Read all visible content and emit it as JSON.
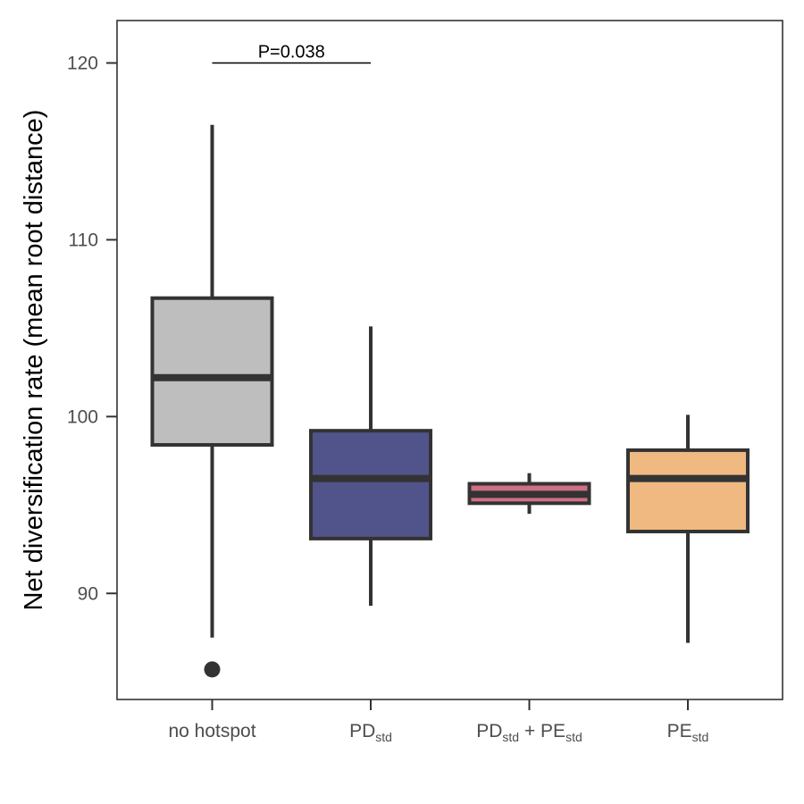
{
  "chart_data": {
    "type": "boxplot",
    "title": "",
    "xlabel": "",
    "ylabel": "Net diversification rate (mean root distance)",
    "ylim": [
      84,
      122.4
    ],
    "yticks": [
      90,
      100,
      110,
      120
    ],
    "grid": false,
    "legend": "none",
    "categories": [
      {
        "base": "no hotspot",
        "sub": ""
      },
      {
        "base": "PD",
        "sub": "std"
      },
      {
        "base": "PD",
        "sub": "std",
        "mid": " + PE",
        "sub2": "std"
      },
      {
        "base": "PE",
        "sub": "std"
      }
    ],
    "boxes": [
      {
        "whisker_low": 87.5,
        "q1": 98.4,
        "median": 102.2,
        "q3": 106.7,
        "whisker_high": 116.5,
        "outliers": [
          85.7
        ],
        "fill": "#bebebe"
      },
      {
        "whisker_low": 89.3,
        "q1": 93.1,
        "median": 96.5,
        "q3": 99.2,
        "whisker_high": 105.1,
        "outliers": [],
        "fill": "#51538b"
      },
      {
        "whisker_low": 94.5,
        "q1": 95.1,
        "median": 95.6,
        "q3": 96.2,
        "whisker_high": 96.8,
        "outliers": [],
        "fill": "#cf6f86"
      },
      {
        "whisker_low": 87.2,
        "q1": 93.5,
        "median": 96.5,
        "q3": 98.1,
        "whisker_high": 100.1,
        "outliers": [],
        "fill": "#f0b981"
      }
    ],
    "annotations": [
      {
        "text": "P=0.038",
        "from_category": 0,
        "to_category": 1,
        "y": 120
      }
    ]
  }
}
